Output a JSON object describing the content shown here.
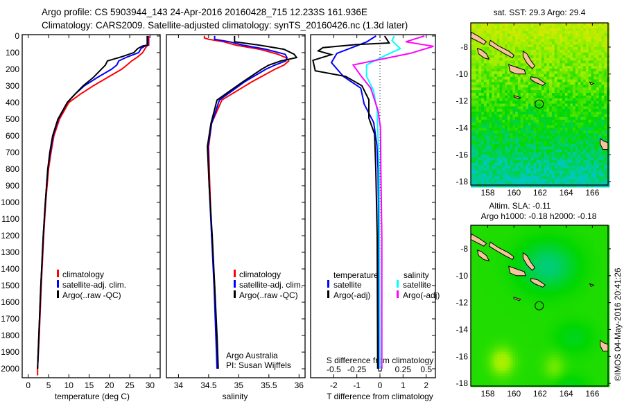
{
  "header": {
    "line1": "Argo profile: CS 5903944_143 24-Apr-2016 20160428_715 12.233S 161.936E",
    "line2": "Climatology: CARS2009. Satellite-adjusted climatology: synTS_20160426.nc (1.3d later)"
  },
  "credit": {
    "line1": "Argo Australia",
    "line2": "PI: Susan Wijffels"
  },
  "timestamp": "©IMOS 04-May-2016 20:41:26",
  "colors": {
    "climatology": "#ff0000",
    "satellite": "#0000ff",
    "argo": "#000000",
    "salinity_satellite": "#00ffff",
    "salinity_argo": "#ff00ff",
    "land": "#f7c39c"
  },
  "chart_data": [
    {
      "type": "line",
      "xlabel": "temperature (deg C)",
      "ylabel": "depth",
      "xlim": [
        -1.5,
        32.5
      ],
      "ylim": [
        2054,
        -8
      ],
      "xticks": [
        0,
        5,
        10,
        15,
        20,
        25,
        30
      ],
      "yticks": [
        0,
        100,
        200,
        300,
        400,
        500,
        600,
        700,
        800,
        900,
        1000,
        1100,
        1200,
        1300,
        1400,
        1500,
        1600,
        1700,
        1800,
        1900,
        2000
      ],
      "legend": {
        "placement": "lower-middle",
        "entries": [
          "climatology",
          "satellite-adj. clim.",
          "Argo(..raw -QC)"
        ]
      },
      "depth": [
        0,
        55,
        60,
        75,
        100,
        125,
        150,
        175,
        200,
        250,
        300,
        350,
        400,
        500,
        600,
        700,
        800,
        1000,
        1200,
        1500,
        1800,
        2000,
        2040
      ],
      "series": [
        {
          "name": "climatology",
          "color": "#ff0000",
          "values": [
            29.7,
            29.7,
            29.2,
            28.8,
            28.2,
            27.0,
            25.5,
            24.3,
            23.0,
            19.5,
            16.0,
            12.8,
            10.0,
            7.7,
            6.3,
            5.6,
            5.0,
            4.3,
            3.8,
            3.2,
            2.7,
            2.3,
            2.3
          ]
        },
        {
          "name": "satellite-adj. clim.",
          "color": "#0000ff",
          "values": [
            29.5,
            29.5,
            28.8,
            27.8,
            27.2,
            24.5,
            22.3,
            21.8,
            20.5,
            17.0,
            13.8,
            11.5,
            9.6,
            7.4,
            6.1,
            5.4,
            4.8,
            4.2,
            3.7,
            3.1,
            2.6,
            2.3,
            null
          ]
        },
        {
          "name": "Argo(..raw -QC)",
          "color": "#000000",
          "values": [
            29.3,
            29.3,
            28.2,
            27.0,
            26.0,
            23.0,
            19.5,
            19.0,
            18.0,
            16.0,
            13.5,
            11.5,
            9.6,
            7.3,
            6.0,
            5.3,
            4.8,
            4.2,
            3.7,
            3.1,
            2.6,
            2.3,
            null
          ]
        }
      ]
    },
    {
      "type": "line",
      "xlabel": "salinity",
      "xlim": [
        33.8,
        36.1
      ],
      "ylim": [
        2054,
        -8
      ],
      "xticks": [
        34,
        34.5,
        35,
        35.5,
        36
      ],
      "legend": {
        "placement": "lower-middle",
        "entries": [
          "climatology",
          "satellite-adj. clim.",
          "Argo(..raw -QC)"
        ]
      },
      "depth": [
        0,
        12,
        20,
        35,
        55,
        80,
        110,
        130,
        150,
        175,
        200,
        275,
        385,
        525,
        665,
        900,
        1200,
        1500,
        1800,
        2000
      ],
      "series": [
        {
          "name": "climatology",
          "color": "#ff0000",
          "values": [
            34.43,
            34.43,
            34.5,
            34.75,
            34.95,
            35.35,
            35.65,
            35.78,
            35.83,
            35.75,
            35.6,
            35.22,
            34.72,
            34.55,
            34.5,
            34.52,
            34.55,
            34.6,
            34.63,
            34.65
          ]
        },
        {
          "name": "satellite-adj. clim.",
          "color": "#0000ff",
          "values": [
            34.6,
            34.6,
            34.6,
            34.85,
            35.07,
            35.45,
            35.77,
            35.8,
            35.78,
            35.6,
            35.45,
            35.1,
            34.68,
            34.55,
            34.49,
            34.51,
            34.55,
            34.59,
            34.62,
            34.64
          ]
        },
        {
          "name": "Argo(..raw -QC)",
          "color": "#000000",
          "values": [
            34.93,
            34.93,
            34.93,
            34.93,
            35.34,
            35.75,
            35.92,
            35.96,
            35.7,
            35.5,
            35.38,
            35.07,
            34.64,
            34.54,
            34.48,
            34.51,
            34.56,
            34.6,
            34.64,
            34.66
          ]
        }
      ]
    },
    {
      "type": "line",
      "xlabel": "T difference from climatology",
      "x2label": "S difference from climatology",
      "xlim": [
        -3.0,
        2.4
      ],
      "x2lim": [
        -0.75,
        0.6
      ],
      "ylim": [
        2054,
        -8
      ],
      "xticks": [
        -2,
        -1,
        0,
        1,
        2
      ],
      "x2ticks": [
        -0.5,
        -0.25,
        0,
        0.25,
        0.5
      ],
      "legend": {
        "placement": "lower-middle",
        "headers": [
          "temperature",
          "salinity"
        ],
        "entries": [
          "satellite",
          "Argo(-adj)",
          "satellite",
          "Argo(-adj)"
        ]
      },
      "series": [
        {
          "name": "T satellite",
          "axis": "T",
          "color": "#0000ff",
          "depth": [
            0,
            35,
            62,
            104,
            160,
            243,
            313,
            410,
            520,
            660,
            800,
            1200,
            2000
          ],
          "values": [
            -0.17,
            -0.57,
            -1.06,
            -1.86,
            -2.1,
            -1.58,
            -0.83,
            -0.68,
            -0.27,
            -0.13,
            -0.08,
            -0.06,
            -0.05
          ]
        },
        {
          "name": "T Argo(-adj)",
          "axis": "T",
          "color": "#000000",
          "depth": [
            0,
            42,
            52,
            70,
            90,
            112,
            146,
            209,
            243,
            299,
            383,
            493,
            590,
            800,
            1200,
            2000
          ],
          "values": [
            0.2,
            0.4,
            -1.06,
            -2.47,
            -2.67,
            -2.1,
            -2.9,
            -2.8,
            -1.48,
            -0.78,
            -0.48,
            -0.48,
            -0.23,
            -0.18,
            -0.12,
            -0.1
          ]
        },
        {
          "name": "S satellite",
          "axis": "S",
          "color": "#00ffff",
          "depth": [
            0,
            28,
            76,
            118,
            174,
            243,
            327,
            450,
            800,
            2000
          ],
          "values": [
            0.155,
            0.13,
            0.22,
            0.055,
            -0.145,
            -0.145,
            -0.07,
            -0.03,
            -0.01,
            0.0
          ]
        },
        {
          "name": "S Argo(-adj)",
          "axis": "S",
          "color": "#ff00ff",
          "depth": [
            0,
            35,
            62,
            104,
            174,
            243,
            313,
            450,
            549,
            800,
            1200,
            2000
          ],
          "values": [
            0.48,
            0.28,
            0.58,
            0.33,
            -0.29,
            -0.2,
            -0.1,
            -0.02,
            0.005,
            0.01,
            0.02,
            0.02
          ]
        }
      ]
    },
    {
      "type": "heatmap",
      "title": "sat. SST: 29.3 Argo: 29.4",
      "xlim": [
        156.7,
        167.2
      ],
      "ylim": [
        -18.25,
        -6.2
      ],
      "xticks": [
        158,
        160,
        162,
        164,
        166
      ],
      "yticks": [
        -8,
        -10,
        -12,
        -14,
        -16,
        -18
      ],
      "profile_location": [
        161.936,
        -12.233
      ]
    },
    {
      "type": "heatmap",
      "title": "Altim. SLA: -0.11",
      "subtitle": "Argo h1000: -0.18 h2000: -0.18",
      "xlim": [
        156.7,
        167.2
      ],
      "ylim": [
        -18.2,
        -6.25
      ],
      "xticks": [
        158,
        160,
        162,
        164,
        166
      ],
      "yticks": [
        -8,
        -10,
        -12,
        -14,
        -16,
        -18
      ],
      "profile_location": [
        161.936,
        -12.233
      ]
    }
  ],
  "islands": [
    [
      [
        156.75,
        -6.9
      ],
      [
        157.3,
        -7.2
      ],
      [
        157.9,
        -7.6
      ],
      [
        157.7,
        -7.8
      ],
      [
        157.1,
        -7.5
      ],
      [
        156.7,
        -7.3
      ]
    ],
    [
      [
        158.2,
        -7.5
      ],
      [
        158.8,
        -7.9
      ],
      [
        159.6,
        -8.3
      ],
      [
        160.0,
        -8.6
      ],
      [
        159.9,
        -8.8
      ],
      [
        159.3,
        -8.5
      ],
      [
        158.6,
        -8.1
      ],
      [
        158.1,
        -7.8
      ]
    ],
    [
      [
        157.2,
        -8.1
      ],
      [
        157.5,
        -8.2
      ],
      [
        157.9,
        -8.5
      ],
      [
        158.1,
        -8.9
      ],
      [
        157.7,
        -8.8
      ],
      [
        157.3,
        -8.5
      ]
    ],
    [
      [
        160.7,
        -8.3
      ],
      [
        161.0,
        -8.5
      ],
      [
        161.3,
        -9.0
      ],
      [
        161.6,
        -9.4
      ],
      [
        161.4,
        -9.6
      ],
      [
        161.0,
        -9.2
      ],
      [
        160.7,
        -8.7
      ]
    ],
    [
      [
        159.6,
        -9.3
      ],
      [
        160.2,
        -9.5
      ],
      [
        160.8,
        -9.7
      ],
      [
        160.9,
        -10.0
      ],
      [
        160.2,
        -10.0
      ],
      [
        159.7,
        -9.8
      ]
    ],
    [
      [
        161.3,
        -10.2
      ],
      [
        161.8,
        -10.3
      ],
      [
        162.4,
        -10.7
      ],
      [
        162.2,
        -10.85
      ],
      [
        161.6,
        -10.6
      ],
      [
        161.3,
        -10.4
      ]
    ],
    [
      [
        160.0,
        -11.6
      ],
      [
        160.5,
        -11.75
      ],
      [
        160.4,
        -11.85
      ],
      [
        160.0,
        -11.7
      ]
    ],
    [
      [
        165.8,
        -10.6
      ],
      [
        166.1,
        -10.7
      ],
      [
        165.9,
        -10.8
      ]
    ],
    [
      [
        166.6,
        -14.8
      ],
      [
        166.9,
        -15.0
      ],
      [
        167.2,
        -15.1
      ],
      [
        167.2,
        -15.6
      ],
      [
        166.8,
        -15.6
      ],
      [
        166.6,
        -15.2
      ]
    ]
  ]
}
